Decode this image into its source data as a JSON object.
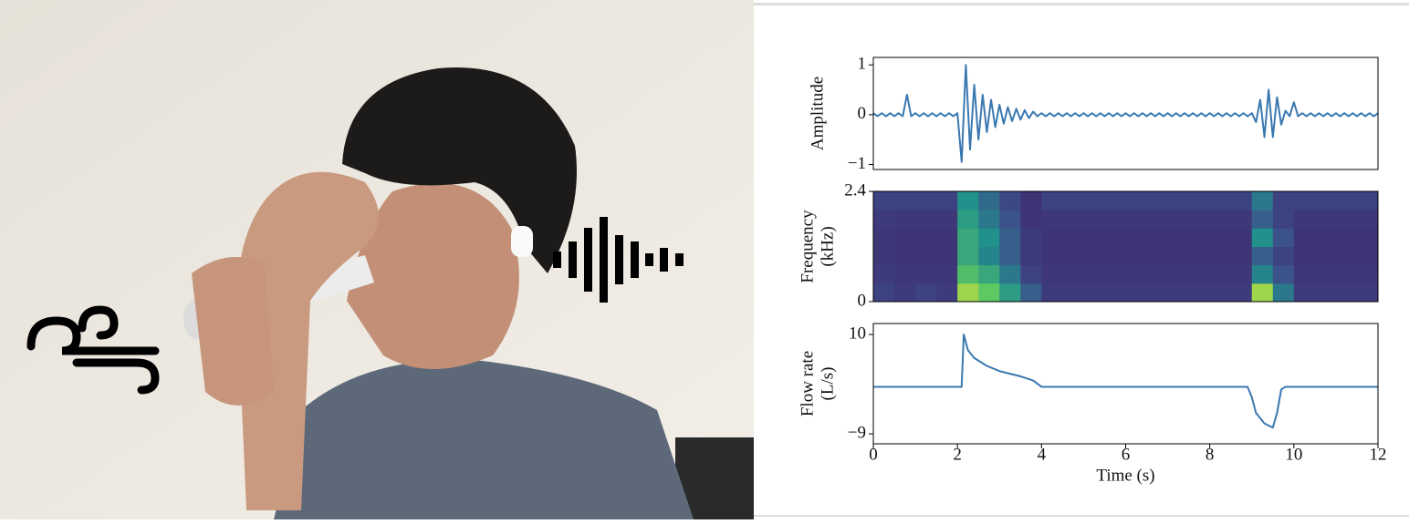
{
  "chart_data": [
    {
      "type": "line",
      "ylabel": [
        "Amplitude"
      ],
      "color": "#3a78b0",
      "x": [
        0,
        0.1,
        0.2,
        0.3,
        0.4,
        0.5,
        0.6,
        0.7,
        0.8,
        0.9,
        1,
        1.1,
        1.2,
        1.3,
        1.4,
        1.5,
        1.6,
        1.7,
        1.8,
        1.9,
        2,
        2.1,
        2.2,
        2.3,
        2.4,
        2.5,
        2.6,
        2.7,
        2.8,
        2.9,
        3,
        3.1,
        3.2,
        3.3,
        3.4,
        3.5,
        3.6,
        3.7,
        3.8,
        3.9,
        4,
        4.1,
        4.2,
        4.3,
        4.4,
        4.5,
        4.6,
        4.7,
        4.8,
        4.9,
        5,
        5.1,
        5.2,
        5.3,
        5.4,
        5.5,
        5.6,
        5.7,
        5.8,
        5.9,
        6,
        6.1,
        6.2,
        6.3,
        6.4,
        6.5,
        6.6,
        6.7,
        6.8,
        6.9,
        7,
        7.1,
        7.2,
        7.3,
        7.4,
        7.5,
        7.6,
        7.7,
        7.8,
        7.9,
        8,
        8.1,
        8.2,
        8.3,
        8.4,
        8.5,
        8.6,
        8.7,
        8.8,
        8.9,
        9,
        9.1,
        9.2,
        9.3,
        9.4,
        9.5,
        9.6,
        9.7,
        9.8,
        9.9,
        10,
        10.1,
        10.2,
        10.3,
        10.4,
        10.5,
        10.6,
        10.7,
        10.8,
        10.9,
        11,
        11.1,
        11.2,
        11.3,
        11.4,
        11.5,
        11.6,
        11.7,
        11.8,
        11.9,
        12
      ],
      "values": [
        0.03,
        -0.03,
        0.03,
        -0.03,
        0.03,
        -0.03,
        0.03,
        -0.03,
        0.4,
        -0.03,
        0.03,
        -0.03,
        0.03,
        -0.03,
        0.03,
        -0.03,
        0.03,
        -0.03,
        0.03,
        -0.03,
        0.03,
        -0.95,
        1,
        -0.7,
        0.6,
        -0.5,
        0.4,
        -0.35,
        0.3,
        -0.25,
        0.2,
        -0.18,
        0.15,
        -0.13,
        0.12,
        -0.1,
        0.09,
        -0.07,
        0.06,
        -0.03,
        0.03,
        -0.03,
        0.03,
        -0.03,
        0.03,
        -0.03,
        0.03,
        -0.03,
        0.03,
        -0.03,
        0.03,
        -0.03,
        0.03,
        -0.03,
        0.03,
        -0.03,
        0.03,
        -0.03,
        0.03,
        -0.03,
        0.03,
        -0.03,
        0.03,
        -0.03,
        0.03,
        -0.03,
        0.03,
        -0.03,
        0.03,
        -0.03,
        0.03,
        -0.03,
        0.03,
        -0.03,
        0.03,
        -0.03,
        0.03,
        -0.03,
        0.03,
        -0.03,
        0.03,
        -0.03,
        0.03,
        -0.03,
        0.03,
        -0.03,
        0.03,
        -0.03,
        0.03,
        -0.03,
        0.03,
        -0.15,
        0.3,
        -0.45,
        0.5,
        -0.45,
        0.35,
        -0.2,
        0.08,
        -0.03,
        0.25,
        -0.03,
        0.03,
        -0.03,
        0.03,
        -0.03,
        0.03,
        -0.03,
        0.03,
        -0.03,
        0.03,
        -0.03,
        0.03,
        -0.03,
        0.03,
        -0.03,
        0.03,
        -0.03,
        0.03,
        -0.03,
        0.03
      ],
      "xlim": [
        0,
        12
      ],
      "ylim": [
        -1.1,
        1.15
      ],
      "yticks": [
        {
          "value": -1,
          "label": "−1"
        },
        0,
        1
      ]
    },
    {
      "type": "heatmap",
      "ylabel": [
        "Frequency",
        "(kHz)"
      ],
      "colormap": "viridis",
      "zlim": [
        0,
        1
      ],
      "xbins": [
        0,
        0.5,
        1,
        1.5,
        2,
        2.5,
        3,
        3.5,
        4,
        4.5,
        5,
        5.5,
        6,
        6.5,
        7,
        7.5,
        8,
        8.5,
        9,
        9.5,
        10,
        10.5,
        11,
        11.5,
        12
      ],
      "ybins": [
        0,
        0.4,
        0.8,
        1.2,
        1.6,
        2,
        2.4
      ],
      "values": [
        [
          0.2,
          0.18,
          0.2,
          0.18,
          0.85,
          0.75,
          0.55,
          0.3,
          0.18,
          0.18,
          0.18,
          0.18,
          0.18,
          0.18,
          0.18,
          0.18,
          0.18,
          0.18,
          0.85,
          0.4,
          0.18,
          0.18,
          0.18,
          0.18
        ],
        [
          0.18,
          0.17,
          0.17,
          0.17,
          0.7,
          0.6,
          0.4,
          0.2,
          0.17,
          0.17,
          0.17,
          0.17,
          0.17,
          0.17,
          0.17,
          0.17,
          0.17,
          0.17,
          0.45,
          0.25,
          0.17,
          0.17,
          0.17,
          0.17
        ],
        [
          0.17,
          0.16,
          0.16,
          0.16,
          0.6,
          0.45,
          0.3,
          0.18,
          0.16,
          0.16,
          0.16,
          0.16,
          0.16,
          0.16,
          0.16,
          0.16,
          0.16,
          0.16,
          0.3,
          0.2,
          0.16,
          0.16,
          0.16,
          0.16
        ],
        [
          0.17,
          0.16,
          0.16,
          0.16,
          0.6,
          0.5,
          0.3,
          0.18,
          0.16,
          0.16,
          0.16,
          0.16,
          0.16,
          0.16,
          0.16,
          0.16,
          0.16,
          0.16,
          0.5,
          0.25,
          0.16,
          0.16,
          0.16,
          0.16
        ],
        [
          0.18,
          0.17,
          0.17,
          0.17,
          0.55,
          0.4,
          0.25,
          0.16,
          0.17,
          0.17,
          0.17,
          0.17,
          0.17,
          0.17,
          0.17,
          0.17,
          0.17,
          0.17,
          0.3,
          0.2,
          0.17,
          0.17,
          0.17,
          0.17
        ],
        [
          0.2,
          0.2,
          0.2,
          0.2,
          0.5,
          0.35,
          0.22,
          0.15,
          0.2,
          0.2,
          0.2,
          0.2,
          0.2,
          0.2,
          0.2,
          0.2,
          0.2,
          0.2,
          0.4,
          0.2,
          0.2,
          0.2,
          0.2,
          0.2
        ]
      ],
      "xlim": [
        0,
        12
      ],
      "ylim": [
        0,
        2.4
      ],
      "yticks": [
        0,
        2.4
      ]
    },
    {
      "type": "line",
      "ylabel": [
        "Flow rate",
        "(L/s)"
      ],
      "xlabel": "Time (s)",
      "color": "#3a78b0",
      "x": [
        0,
        2.1,
        2.15,
        2.25,
        2.4,
        2.7,
        3,
        3.5,
        3.8,
        4,
        8.9,
        9,
        9.1,
        9.3,
        9.5,
        9.6,
        9.7,
        9.8,
        12
      ],
      "values": [
        0,
        0,
        10,
        7,
        5.5,
        4,
        3,
        2,
        1.2,
        0,
        0,
        -2,
        -5,
        -7,
        -7.8,
        -5,
        -0.5,
        0,
        0
      ],
      "xlim": [
        0,
        12
      ],
      "ylim": [
        -10.9,
        12.1
      ],
      "xticks": [
        0,
        2,
        4,
        6,
        8,
        10,
        12
      ],
      "yticks": [
        {
          "value": -9,
          "label": "−9"
        },
        10
      ]
    }
  ]
}
